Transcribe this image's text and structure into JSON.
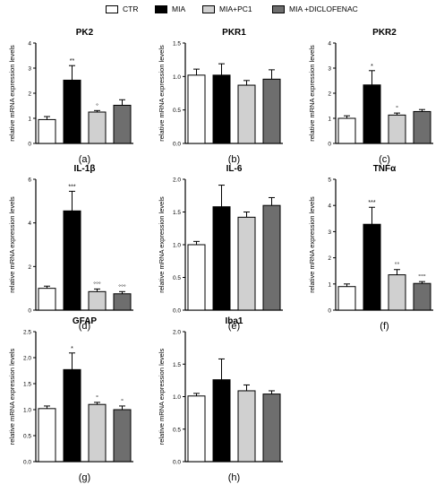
{
  "legend": [
    {
      "label": "CTR",
      "color": "#ffffff"
    },
    {
      "label": "MIA",
      "color": "#000000"
    },
    {
      "label": "MIA+PC1",
      "color": "#d0d0d0"
    },
    {
      "label": "MIA +DICLOFENAC",
      "color": "#6e6e6e"
    }
  ],
  "chart_data": [
    {
      "type": "bar",
      "title": "PK2",
      "panel": "(a)",
      "ylabel": "relative mRNA expression levels",
      "ylim": [
        0,
        4
      ],
      "yticks": [
        0,
        1,
        2,
        3,
        4
      ],
      "categories": [
        "CTR",
        "MIA",
        "MIA+PC1",
        "MIA +DICLOFENAC"
      ],
      "values": [
        0.95,
        2.52,
        1.25,
        1.52
      ],
      "errors": [
        0.12,
        0.58,
        0.06,
        0.22
      ],
      "annotations": [
        "",
        "**",
        "°",
        ""
      ]
    },
    {
      "type": "bar",
      "title": "PKR1",
      "panel": "(b)",
      "ylabel": "relative mRNA expression levels",
      "ylim": [
        0,
        1.5
      ],
      "yticks": [
        0.0,
        0.5,
        1.0,
        1.5
      ],
      "categories": [
        "CTR",
        "MIA",
        "MIA+PC1",
        "MIA +DICLOFENAC"
      ],
      "values": [
        1.02,
        1.02,
        0.87,
        0.96
      ],
      "errors": [
        0.09,
        0.17,
        0.07,
        0.14
      ],
      "annotations": [
        "",
        "",
        "",
        ""
      ]
    },
    {
      "type": "bar",
      "title": "PKR2",
      "panel": "(c)",
      "ylabel": "relative mRNA expression levels",
      "ylim": [
        0,
        4
      ],
      "yticks": [
        0,
        1,
        2,
        3,
        4
      ],
      "categories": [
        "CTR",
        "MIA",
        "MIA+PC1",
        "MIA +DICLOFENAC"
      ],
      "values": [
        1.0,
        2.33,
        1.13,
        1.27
      ],
      "errors": [
        0.1,
        0.57,
        0.08,
        0.08
      ],
      "annotations": [
        "",
        "*",
        "°",
        ""
      ]
    },
    {
      "type": "bar",
      "title": "IL-1β",
      "panel": "(d)",
      "ylabel": "relative mRNA expression levels",
      "ylim": [
        0,
        6
      ],
      "yticks": [
        0,
        2,
        4,
        6
      ],
      "categories": [
        "CTR",
        "MIA",
        "MIA+PC1",
        "MIA +DICLOFENAC"
      ],
      "values": [
        1.0,
        4.55,
        0.85,
        0.75
      ],
      "errors": [
        0.1,
        0.9,
        0.12,
        0.1
      ],
      "annotations": [
        "",
        "***",
        "°°°",
        "°°°"
      ]
    },
    {
      "type": "bar",
      "title": "IL-6",
      "panel": "(e)",
      "ylabel": "relative mRNA expression levels",
      "ylim": [
        0,
        2.0
      ],
      "yticks": [
        0.0,
        0.5,
        1.0,
        1.5,
        2.0
      ],
      "categories": [
        "CTR",
        "MIA",
        "MIA+PC1",
        "MIA +DICLOFENAC"
      ],
      "values": [
        1.0,
        1.58,
        1.42,
        1.6
      ],
      "errors": [
        0.05,
        0.33,
        0.08,
        0.12
      ],
      "annotations": [
        "",
        "",
        "",
        ""
      ]
    },
    {
      "type": "bar",
      "title": "TNFα",
      "panel": "(f)",
      "ylabel": "relative mRNA expression levels",
      "ylim": [
        0,
        5
      ],
      "yticks": [
        0,
        1,
        2,
        3,
        4,
        5
      ],
      "categories": [
        "CTR",
        "MIA",
        "MIA+PC1",
        "MIA +DICLOFENAC"
      ],
      "values": [
        0.9,
        3.28,
        1.35,
        1.02
      ],
      "errors": [
        0.1,
        0.65,
        0.2,
        0.07
      ],
      "annotations": [
        "",
        "***",
        "°°",
        "°°°"
      ]
    },
    {
      "type": "bar",
      "title": "GFAP",
      "panel": "(g)",
      "ylabel": "relative mRNA expression levels",
      "ylim": [
        0,
        2.5
      ],
      "yticks": [
        0.0,
        0.5,
        1.0,
        1.5,
        2.0,
        2.5
      ],
      "categories": [
        "CTR",
        "MIA",
        "MIA+PC1",
        "MIA +DICLOFENAC"
      ],
      "values": [
        1.02,
        1.77,
        1.1,
        1.0
      ],
      "errors": [
        0.05,
        0.32,
        0.04,
        0.07
      ],
      "annotations": [
        "",
        "*",
        "°",
        "°"
      ]
    },
    {
      "type": "bar",
      "title": "Iba1",
      "panel": "(h)",
      "ylabel": "relative mRNA expression levels",
      "ylim": [
        0,
        2.0
      ],
      "yticks": [
        0.0,
        0.5,
        1.0,
        1.5,
        2.0
      ],
      "categories": [
        "CTR",
        "MIA",
        "MIA+PC1",
        "MIA +DICLOFENAC"
      ],
      "values": [
        1.01,
        1.26,
        1.09,
        1.04
      ],
      "errors": [
        0.04,
        0.32,
        0.09,
        0.05
      ],
      "annotations": [
        "",
        "",
        "",
        ""
      ]
    }
  ]
}
